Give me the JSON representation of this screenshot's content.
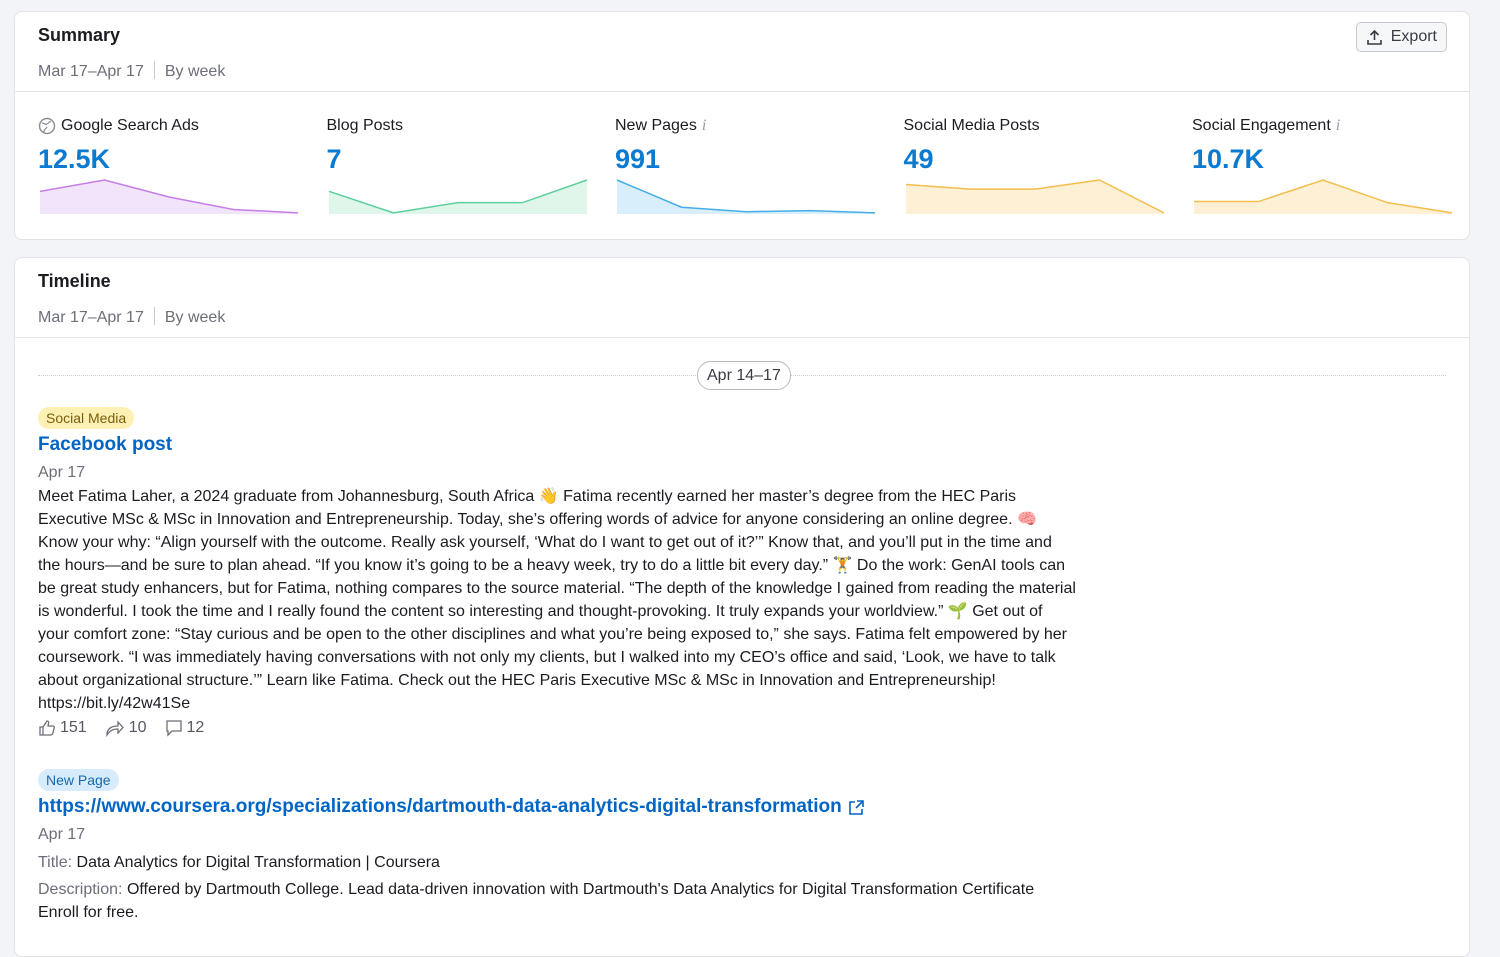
{
  "summary": {
    "title": "Summary",
    "date_range": "Mar 17–Apr 17",
    "period": "By week",
    "export_label": "Export",
    "metrics": [
      {
        "label": "Google Search Ads",
        "value": "12.5K",
        "color": "#c77ee6",
        "fill": "#f1e4fb",
        "spark": [
          20,
          30,
          15,
          4,
          1
        ]
      },
      {
        "label": "Blog Posts",
        "value": "7",
        "color": "#5ccf9c",
        "fill": "#e1f6eb",
        "spark": [
          20,
          1,
          10,
          10,
          30
        ]
      },
      {
        "label": "New Pages",
        "value": "991",
        "color": "#45aee6",
        "fill": "#d8eefa",
        "spark": [
          30,
          6,
          2,
          3,
          1
        ],
        "info": true
      },
      {
        "label": "Social Media Posts",
        "value": "49",
        "color": "#f3be4c",
        "fill": "#fdf0d4",
        "spark": [
          26,
          22,
          22,
          30,
          1
        ]
      },
      {
        "label": "Social Engagement",
        "value": "10.7K",
        "color": "#f3be4c",
        "fill": "#fdf0d4",
        "spark": [
          11,
          11,
          30,
          10,
          1
        ],
        "info": true
      }
    ]
  },
  "timeline": {
    "title": "Timeline",
    "date_range": "Mar 17–Apr 17",
    "period": "By week",
    "week_label": "Apr 14–17",
    "post": {
      "tag": "Social Media",
      "title": "Facebook post",
      "date": "Apr 17",
      "body": "Meet Fatima Laher, a 2024 graduate from Johannesburg, South Africa 👋 Fatima recently earned her master’s degree from the HEC Paris Executive MSc & MSc in Innovation and Entrepreneurship. Today, she’s offering words of advice for anyone considering an online degree. 🧠 Know your why: “Align yourself with the outcome. Really ask yourself, ‘What do I want to get out of it?’” Know that, and you’ll put in the time and the hours—and be sure to plan ahead. “If you know it’s going to be a heavy week, try to do a little bit every day.” 🏋 Do the work: GenAI tools can be great study enhancers, but for Fatima, nothing compares to the source material. “The depth of the knowledge I gained from reading the material is wonderful. I took the time and I really found the content so interesting and thought-provoking. It truly expands your worldview.” 🌱 Get out of your comfort zone: “Stay curious and be open to the other disciplines and what you’re being exposed to,” she says. Fatima felt empowered by her coursework. “I was immediately having conversations with not only my clients, but I walked into my CEO’s office and said, ‘Look, we have to talk about organizational structure.’” Learn like Fatima. Check out the HEC Paris Executive MSc & MSc in Innovation and Entrepreneurship! https://bit.ly/42w41Se",
      "likes": "151",
      "shares": "10",
      "comments": "12"
    },
    "page": {
      "tag": "New Page",
      "url": "https://www.coursera.org/specializations/dartmouth-data-analytics-digital-transformation",
      "date": "Apr 17",
      "title_label": "Title:",
      "title": "Data Analytics for Digital Transformation | Coursera",
      "description_label": "Description:",
      "description": "Offered by Dartmouth College. Lead data-driven innovation with Dartmouth's Data Analytics for Digital Transformation Certificate Enroll for free."
    }
  }
}
